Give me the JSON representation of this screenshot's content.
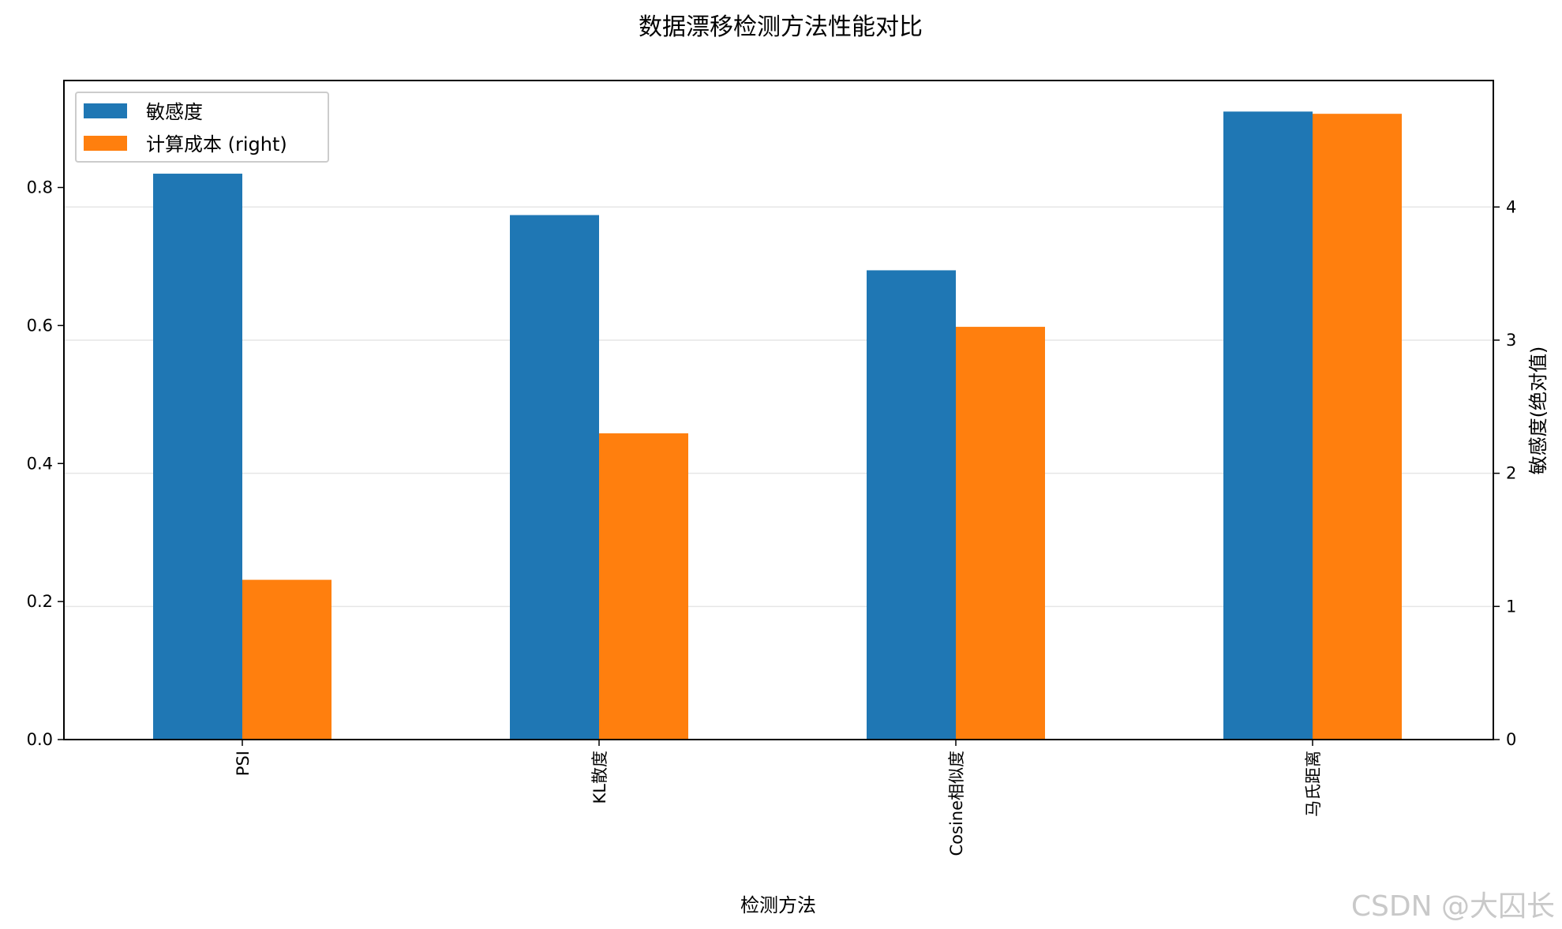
{
  "chart_data": {
    "type": "bar",
    "title": "数据漂移检测方法性能对比",
    "categories": [
      "PSI",
      "KL散度",
      "Cosine相似度",
      "马氏距离"
    ],
    "series": [
      {
        "name": "敏感度",
        "axis": "left",
        "color": "#1f77b4",
        "values": [
          0.82,
          0.76,
          0.68,
          0.91
        ]
      },
      {
        "name": "计算成本 (right)",
        "axis": "right",
        "color": "#ff7f0e",
        "values": [
          1.2,
          2.3,
          3.1,
          4.7
        ]
      }
    ],
    "xlabel": "检测方法",
    "ylabel_left": "",
    "ylabel_right": "敏感度(绝对值)",
    "ylim_left": [
      0,
      0.955
    ],
    "ylim_right": [
      0,
      4.95
    ],
    "yticks_left": [
      0.0,
      0.2,
      0.4,
      0.6,
      0.8
    ],
    "yticks_right": [
      0,
      1,
      2,
      3,
      4
    ],
    "ytick_labels_left": [
      "0.0",
      "0.2",
      "0.4",
      "0.6",
      "0.8"
    ],
    "ytick_labels_right": [
      "0",
      "1",
      "2",
      "3",
      "4"
    ],
    "grid": "horizontal, right axis",
    "legend_position": "upper-left",
    "xtick_rotation": "vertical"
  },
  "watermark": "CSDN @大囚长"
}
